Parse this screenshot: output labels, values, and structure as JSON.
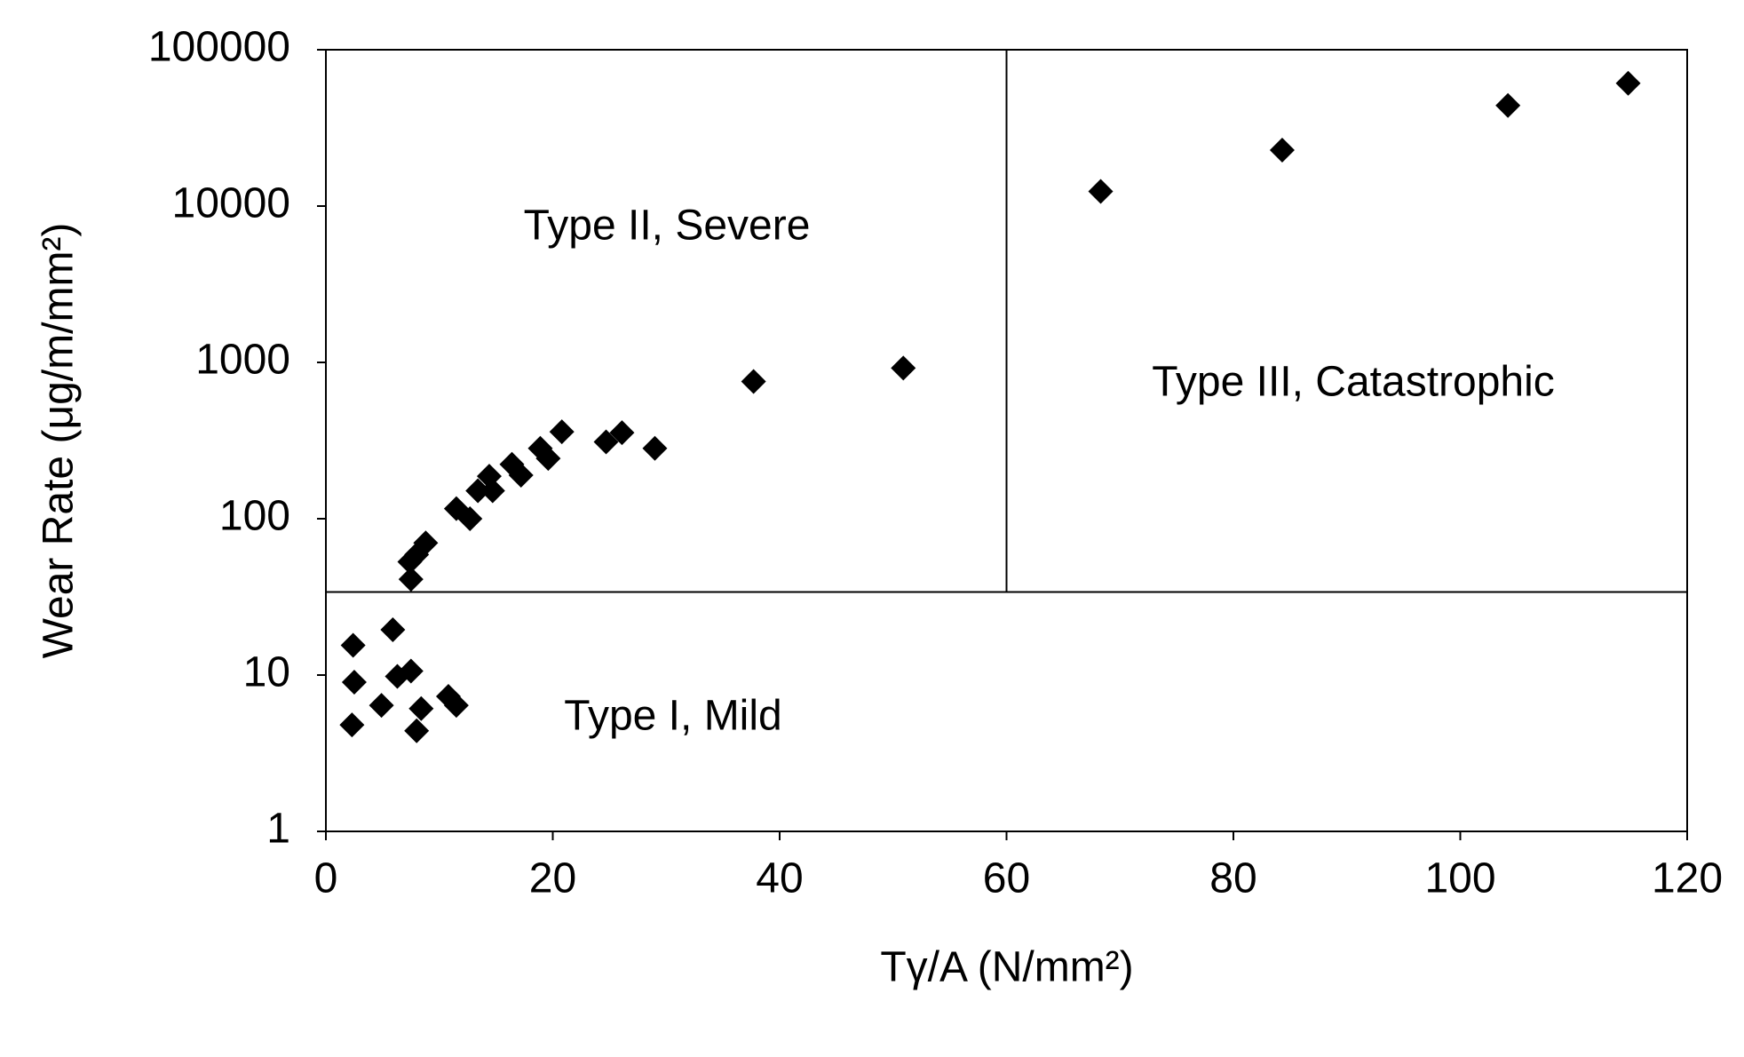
{
  "chart_data": {
    "type": "scatter",
    "x_label": "Tγ/A (N/mm²)",
    "y_label": "Wear Rate (μg/m/mm²)",
    "annotations": [
      "Type II, Severe",
      "Type III, Catastrophic",
      "Type I, Mild"
    ],
    "boundary_x": 60,
    "boundary_y": 34,
    "xlim": [
      0,
      120
    ],
    "xticks": [
      0,
      20,
      40,
      60,
      80,
      100,
      120
    ],
    "ylim": [
      1,
      100000
    ],
    "yticks": [
      1,
      10,
      100,
      1000,
      10000,
      100000
    ],
    "log_y": true,
    "grid": false,
    "color": "#000000",
    "x": [
      68.3,
      84.3,
      104.2,
      114.8,
      50.9,
      37.7,
      29.0,
      26.1,
      24.7,
      20.8,
      19.6,
      18.9,
      17.2,
      16.4,
      14.4,
      14.7,
      13.4,
      12.7,
      11.5,
      8.8,
      8.0,
      7.4,
      7.5,
      5.9,
      2.4,
      2.5,
      6.3,
      7.5,
      4.9,
      8.4,
      10.8,
      11.5,
      2.3,
      8.0
    ],
    "values": [
      12400,
      22800,
      44000,
      61000,
      920,
      755,
      282,
      355,
      310,
      360,
      243,
      282,
      190,
      223,
      187,
      151,
      151,
      100,
      116,
      70,
      59,
      53,
      41,
      19.5,
      15.5,
      9.0,
      9.8,
      10.6,
      6.4,
      6.1,
      7.3,
      6.4,
      4.8,
      4.4
    ]
  }
}
